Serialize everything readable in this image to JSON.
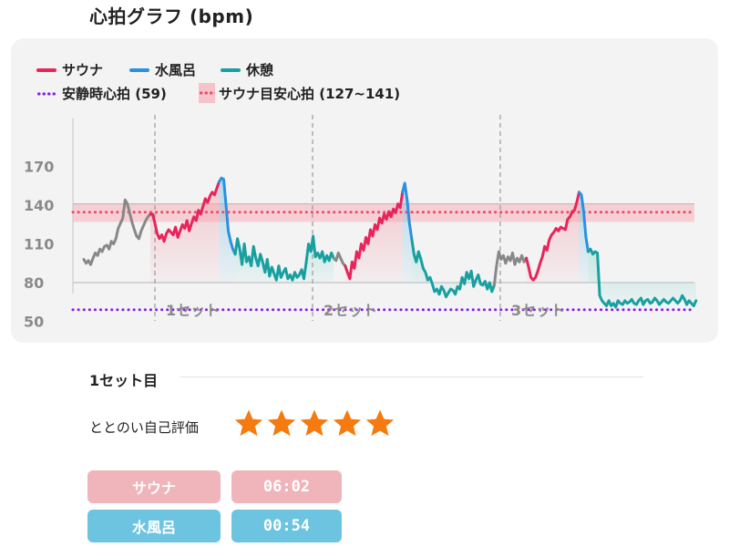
{
  "page_title": "心拍グラフ (bpm)",
  "legend": {
    "sauna": "サウナ",
    "cold_bath": "水風呂",
    "rest": "休憩",
    "resting_hr": "安静時心拍 (59)",
    "target_hr": "サウナ目安心拍 (127~141)"
  },
  "colors": {
    "sauna": "#e8245a",
    "cold_bath": "#2d8fe0",
    "rest": "#18a0a0",
    "other": "#888888",
    "resting_line": "#8a1ee0",
    "target_band": "#f5c3c8",
    "target_line": "#e84a6e",
    "sauna_fill": "#f3a5ae",
    "rest_fill": "#9edfd6",
    "star": "#f57a10",
    "pill_sauna": "#efb5ba",
    "pill_cold": "#6cc4e0"
  },
  "chart_data": {
    "type": "line",
    "ylabel": "",
    "yticks": [
      170,
      140,
      110,
      80,
      50
    ],
    "ylim": [
      45,
      180
    ],
    "set_labels": [
      "1セット",
      "2セット",
      "3セット"
    ],
    "resting_hr": 59,
    "target_range": [
      127,
      141
    ],
    "phases": [
      {
        "phase": "other",
        "values": [
          98,
          95,
          97,
          94,
          99,
          103,
          101,
          106,
          104,
          108,
          109,
          106,
          112,
          110,
          114,
          122,
          126,
          130,
          144,
          141,
          134,
          127,
          121,
          116,
          114,
          120,
          124,
          128,
          131,
          133
        ]
      },
      {
        "phase": "sauna",
        "values": [
          133,
          126,
          118,
          114,
          117,
          112,
          118,
          121,
          119,
          117,
          123,
          115,
          120,
          125,
          122,
          128,
          120,
          126,
          131,
          128,
          136,
          133,
          139,
          145,
          142,
          147,
          150,
          148,
          153,
          158
        ]
      },
      {
        "phase": "cold_bath",
        "values": [
          161,
          160,
          140,
          120,
          112,
          106,
          102
        ]
      },
      {
        "phase": "rest",
        "values": [
          114,
          106,
          94,
          110,
          96,
          100,
          93,
          108,
          99,
          93,
          102,
          96,
          88,
          98,
          85,
          92,
          87,
          82,
          93,
          84,
          88,
          91,
          83,
          86,
          82,
          88,
          84,
          86,
          90,
          83,
          96,
          110,
          104,
          116,
          100,
          103,
          99,
          104,
          96,
          101,
          97,
          103,
          99
        ]
      },
      {
        "phase": "other",
        "values": [
          97,
          103,
          99,
          95,
          93
        ]
      },
      {
        "phase": "sauna",
        "values": [
          88,
          83,
          96,
          91,
          104,
          99,
          110,
          105,
          115,
          110,
          121,
          116,
          125,
          121,
          130,
          126,
          133,
          129,
          135,
          131,
          137,
          134,
          141,
          138,
          150
        ]
      },
      {
        "phase": "cold_bath",
        "values": [
          157,
          144,
          126,
          114
        ]
      },
      {
        "phase": "rest",
        "values": [
          102,
          96,
          104,
          98,
          91,
          88,
          82,
          84,
          79,
          73,
          75,
          71,
          77,
          74,
          69,
          72,
          75,
          74,
          71,
          77,
          75,
          84,
          79,
          88,
          83,
          89,
          77,
          82,
          86,
          79,
          78,
          81,
          75,
          80,
          73,
          78
        ]
      },
      {
        "phase": "other",
        "values": [
          93,
          104,
          98,
          101,
          95,
          100,
          97,
          103,
          94,
          99,
          96,
          101,
          96,
          99
        ]
      },
      {
        "phase": "sauna",
        "values": [
          92,
          84,
          82,
          84,
          89,
          95,
          100,
          108,
          105,
          113,
          117,
          119,
          122,
          120,
          123,
          122,
          121,
          129,
          131,
          135,
          136,
          142,
          150
        ]
      },
      {
        "phase": "cold_bath",
        "values": [
          148,
          135,
          115,
          104
        ]
      },
      {
        "phase": "rest",
        "values": [
          106,
          102,
          104,
          103,
          70,
          66,
          64,
          62,
          66,
          62,
          64,
          61,
          66,
          64,
          63,
          66,
          64,
          65,
          67,
          64,
          63,
          66,
          68,
          63,
          66,
          67,
          64,
          65,
          68,
          66,
          63,
          65,
          67,
          65,
          64,
          66,
          68,
          66,
          64,
          66,
          70,
          67,
          63,
          66,
          64,
          62,
          66
        ]
      }
    ]
  },
  "section": {
    "title": "1セット目",
    "rating_label": "ととのい自己評価",
    "rating": 5,
    "rating_max": 5
  },
  "times": [
    {
      "label": "サウナ",
      "value": "06:02"
    },
    {
      "label": "水風呂",
      "value": "00:54"
    }
  ]
}
